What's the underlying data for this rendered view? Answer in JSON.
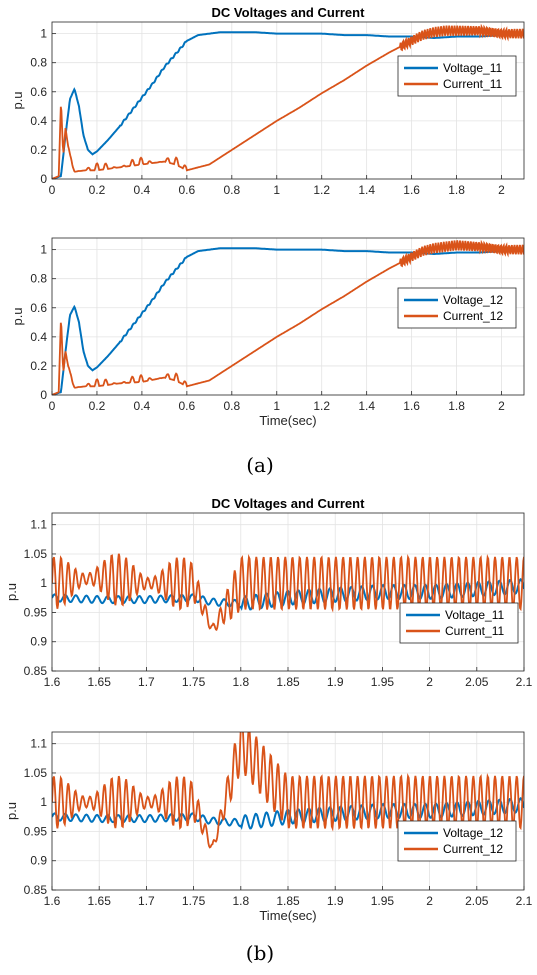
{
  "figure": {
    "label_a": "(a)",
    "label_b": "(b)"
  },
  "colors": {
    "voltage": "#0072BD",
    "current": "#D95319"
  },
  "chart_data": [
    {
      "id": "a1",
      "type": "line",
      "title": "DC Voltages and Current",
      "xlabel": "",
      "ylabel": "p.u",
      "xlim": [
        0,
        2.1
      ],
      "ylim": [
        0,
        1.08
      ],
      "xticks": [
        0,
        0.2,
        0.4,
        0.6,
        0.8,
        1,
        1.2,
        1.4,
        1.6,
        1.8,
        2
      ],
      "xtick_labels": [
        "0",
        "0.2",
        "0.4",
        "0.6",
        "0.8",
        "1",
        "1.2",
        "1.4",
        "1.6",
        "1.8",
        "2"
      ],
      "yticks": [
        0,
        0.2,
        0.4,
        0.6,
        0.8,
        1
      ],
      "ytick_labels": [
        "0",
        "0.2",
        "0.4",
        "0.6",
        "0.8",
        "1"
      ],
      "grid": true,
      "legend": "upper-right",
      "series": [
        {
          "name": "Voltage_11",
          "color": "#0072BD",
          "x": [
            0,
            0.04,
            0.06,
            0.08,
            0.1,
            0.12,
            0.14,
            0.16,
            0.18,
            0.2,
            0.25,
            0.3,
            0.35,
            0.4,
            0.45,
            0.5,
            0.55,
            0.6,
            0.65,
            0.7,
            0.75,
            0.8,
            0.9,
            1.0,
            1.1,
            1.2,
            1.3,
            1.4,
            1.5,
            1.6,
            1.7,
            1.8,
            1.9,
            2.0,
            2.1
          ],
          "y": [
            0,
            0.02,
            0.3,
            0.55,
            0.62,
            0.5,
            0.3,
            0.2,
            0.17,
            0.19,
            0.27,
            0.36,
            0.46,
            0.56,
            0.66,
            0.77,
            0.86,
            0.95,
            0.99,
            1.0,
            1.01,
            1.01,
            1.01,
            1.0,
            1.0,
            1.0,
            0.99,
            0.99,
            0.98,
            0.98,
            0.97,
            0.98,
            0.98,
            0.99,
            0.99
          ]
        },
        {
          "name": "Current_11",
          "color": "#D95319",
          "x": [
            0,
            0.03,
            0.04,
            0.05,
            0.06,
            0.08,
            0.1,
            0.15,
            0.2,
            0.3,
            0.4,
            0.5,
            0.55,
            0.6,
            0.7,
            0.8,
            0.9,
            1.0,
            1.1,
            1.2,
            1.3,
            1.4,
            1.5,
            1.6,
            1.65,
            1.7,
            1.75,
            1.8,
            1.9,
            2.0,
            2.1
          ],
          "y": [
            0,
            0.02,
            0.55,
            0.15,
            0.35,
            0.14,
            0.05,
            0.06,
            0.06,
            0.08,
            0.1,
            0.12,
            0.1,
            0.06,
            0.1,
            0.2,
            0.3,
            0.4,
            0.49,
            0.59,
            0.68,
            0.78,
            0.87,
            0.95,
            0.99,
            1.01,
            1.02,
            1.02,
            1.02,
            1.0,
            1.0
          ]
        }
      ]
    },
    {
      "id": "a2",
      "type": "line",
      "title": "",
      "xlabel": "Time(sec)",
      "ylabel": "p.u",
      "xlim": [
        0,
        2.1
      ],
      "ylim": [
        0,
        1.08
      ],
      "xticks": [
        0,
        0.2,
        0.4,
        0.6,
        0.8,
        1,
        1.2,
        1.4,
        1.6,
        1.8,
        2
      ],
      "xtick_labels": [
        "0",
        "0.2",
        "0.4",
        "0.6",
        "0.8",
        "1",
        "1.2",
        "1.4",
        "1.6",
        "1.8",
        "2"
      ],
      "yticks": [
        0,
        0.2,
        0.4,
        0.6,
        0.8,
        1
      ],
      "ytick_labels": [
        "0",
        "0.2",
        "0.4",
        "0.6",
        "0.8",
        "1"
      ],
      "grid": true,
      "legend": "right",
      "series": [
        {
          "name": "Voltage_12",
          "color": "#0072BD",
          "x": [
            0,
            0.04,
            0.06,
            0.08,
            0.1,
            0.12,
            0.14,
            0.16,
            0.18,
            0.2,
            0.25,
            0.3,
            0.35,
            0.4,
            0.45,
            0.5,
            0.55,
            0.6,
            0.65,
            0.7,
            0.75,
            0.8,
            0.9,
            1.0,
            1.1,
            1.2,
            1.3,
            1.4,
            1.5,
            1.6,
            1.7,
            1.8,
            1.9,
            2.0,
            2.1
          ],
          "y": [
            0,
            0.02,
            0.3,
            0.55,
            0.61,
            0.5,
            0.3,
            0.2,
            0.17,
            0.19,
            0.27,
            0.36,
            0.46,
            0.56,
            0.66,
            0.77,
            0.86,
            0.95,
            0.99,
            1.0,
            1.01,
            1.01,
            1.01,
            1.0,
            1.0,
            1.0,
            0.99,
            0.99,
            0.98,
            0.98,
            0.97,
            0.98,
            0.98,
            0.99,
            0.99
          ]
        },
        {
          "name": "Current_12",
          "color": "#D95319",
          "x": [
            0,
            0.03,
            0.04,
            0.05,
            0.06,
            0.08,
            0.1,
            0.15,
            0.2,
            0.3,
            0.4,
            0.5,
            0.55,
            0.6,
            0.7,
            0.8,
            0.9,
            1.0,
            1.1,
            1.2,
            1.3,
            1.4,
            1.5,
            1.6,
            1.65,
            1.7,
            1.75,
            1.8,
            1.9,
            2.0,
            2.1
          ],
          "y": [
            0,
            0.02,
            0.55,
            0.14,
            0.3,
            0.13,
            0.05,
            0.06,
            0.06,
            0.08,
            0.09,
            0.12,
            0.1,
            0.06,
            0.1,
            0.2,
            0.3,
            0.4,
            0.49,
            0.59,
            0.68,
            0.78,
            0.87,
            0.95,
            0.99,
            1.01,
            1.02,
            1.03,
            1.02,
            1.0,
            1.0
          ]
        }
      ]
    },
    {
      "id": "b1",
      "type": "line",
      "title": "DC Voltages and Current",
      "xlabel": "",
      "ylabel": "p.u",
      "xlim": [
        1.6,
        2.1
      ],
      "ylim": [
        0.85,
        1.12
      ],
      "xticks": [
        1.6,
        1.65,
        1.7,
        1.75,
        1.8,
        1.85,
        1.9,
        1.95,
        2,
        2.05,
        2.1
      ],
      "xtick_labels": [
        "1.6",
        "1.65",
        "1.7",
        "1.75",
        "1.8",
        "1.85",
        "1.9",
        "1.95",
        "2",
        "2.05",
        "2.1"
      ],
      "yticks": [
        0.85,
        0.9,
        0.95,
        1,
        1.05,
        1.1
      ],
      "ytick_labels": [
        "0.85",
        "0.9",
        "0.95",
        "1",
        "1.05",
        "1.1"
      ],
      "grid": true,
      "legend": "lower-right",
      "series": [
        {
          "name": "Voltage_11",
          "color": "#0072BD",
          "x": [
            1.6,
            1.65,
            1.7,
            1.75,
            1.77,
            1.8,
            1.85,
            1.9,
            1.95,
            2.0,
            2.05,
            2.1
          ],
          "y": [
            0.975,
            0.972,
            0.972,
            0.975,
            0.968,
            0.965,
            0.975,
            0.98,
            0.985,
            0.985,
            0.99,
            0.995
          ]
        },
        {
          "name": "Current_11",
          "color": "#D95319",
          "x": [
            1.6,
            1.65,
            1.7,
            1.75,
            1.77,
            1.8,
            1.85,
            1.9,
            1.95,
            2.0,
            2.05,
            2.1
          ],
          "y": [
            1.0,
            1.01,
            1.0,
            1.0,
            0.92,
            1.0,
            1.0,
            1.0,
            1.0,
            1.0,
            1.0,
            1.0
          ]
        }
      ]
    },
    {
      "id": "b2",
      "type": "line",
      "title": "",
      "xlabel": "Time(sec)",
      "ylabel": "p.u",
      "xlim": [
        1.6,
        2.1
      ],
      "ylim": [
        0.85,
        1.12
      ],
      "xticks": [
        1.6,
        1.65,
        1.7,
        1.75,
        1.8,
        1.85,
        1.9,
        1.95,
        2,
        2.05,
        2.1
      ],
      "xtick_labels": [
        "1.6",
        "1.65",
        "1.7",
        "1.75",
        "1.8",
        "1.85",
        "1.9",
        "1.95",
        "2",
        "2.05",
        "2.1"
      ],
      "yticks": [
        0.85,
        0.9,
        0.95,
        1,
        1.05,
        1.1
      ],
      "ytick_labels": [
        "0.85",
        "0.9",
        "0.95",
        "1",
        "1.05",
        "1.1"
      ],
      "grid": true,
      "legend": "lower-right",
      "series": [
        {
          "name": "Voltage_12",
          "color": "#0072BD",
          "x": [
            1.6,
            1.65,
            1.7,
            1.75,
            1.77,
            1.8,
            1.85,
            1.9,
            1.95,
            2.0,
            2.05,
            2.1
          ],
          "y": [
            0.975,
            0.972,
            0.972,
            0.975,
            0.968,
            0.965,
            0.975,
            0.98,
            0.985,
            0.985,
            0.99,
            0.995
          ]
        },
        {
          "name": "Current_12",
          "color": "#D95319",
          "x": [
            1.6,
            1.65,
            1.7,
            1.75,
            1.77,
            1.8,
            1.85,
            1.9,
            1.95,
            2.0,
            2.05,
            2.1
          ],
          "y": [
            1.0,
            1.0,
            1.0,
            1.0,
            0.92,
            1.1,
            1.0,
            1.0,
            1.0,
            1.0,
            1.0,
            1.0
          ]
        }
      ]
    }
  ]
}
